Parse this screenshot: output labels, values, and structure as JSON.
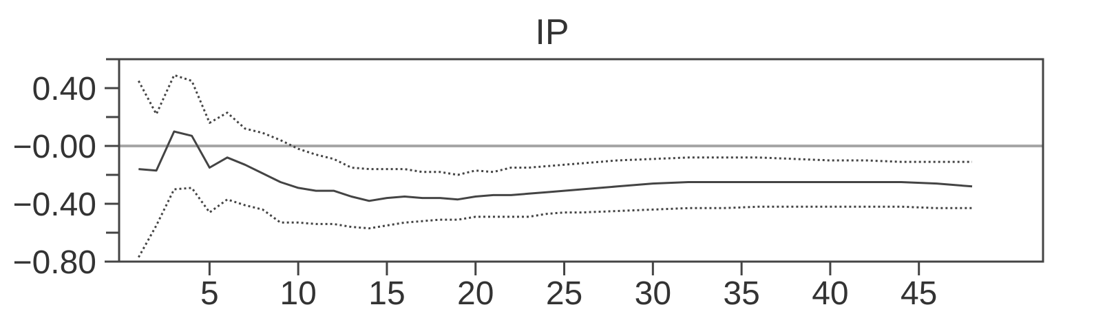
{
  "chart_data": {
    "type": "line",
    "title": "IP",
    "xlabel": "",
    "ylabel": "",
    "xlim": [
      -0.1,
      52
    ],
    "ylim": [
      -0.8,
      0.6
    ],
    "x_ticks": [
      5,
      10,
      15,
      20,
      25,
      30,
      35,
      40,
      45
    ],
    "x_tick_labels": [
      "5",
      "10",
      "15",
      "20",
      "25",
      "30",
      "35",
      "40",
      "45"
    ],
    "y_ticks": [
      0.4,
      0.0,
      -0.4,
      -0.8
    ],
    "y_tick_labels": [
      "0.40",
      "−0.00",
      "−0.40",
      "−0.80"
    ],
    "y_minor_ticks": [
      0.6,
      0.2,
      -0.2,
      -0.6
    ],
    "zero_line": 0.0,
    "grid": false,
    "colors": {
      "estimate": "#444444",
      "band": "#444444",
      "zero": "#a6a6a6",
      "frame": "#444444"
    },
    "series": [
      {
        "role": "upper-band",
        "style": "dotted",
        "x": [
          1,
          2,
          3,
          4,
          5,
          6,
          7,
          8,
          9,
          10,
          11,
          12,
          13,
          14,
          15,
          16,
          17,
          18,
          19,
          20,
          21,
          22,
          23,
          24,
          25,
          26,
          28,
          30,
          32,
          34,
          36,
          38,
          40,
          42,
          44,
          46,
          48
        ],
        "values": [
          0.45,
          0.22,
          0.49,
          0.45,
          0.16,
          0.23,
          0.12,
          0.09,
          0.04,
          -0.02,
          -0.06,
          -0.09,
          -0.15,
          -0.16,
          -0.16,
          -0.16,
          -0.18,
          -0.18,
          -0.2,
          -0.17,
          -0.18,
          -0.15,
          -0.15,
          -0.14,
          -0.13,
          -0.12,
          -0.1,
          -0.09,
          -0.08,
          -0.08,
          -0.08,
          -0.09,
          -0.1,
          -0.1,
          -0.11,
          -0.11,
          -0.11
        ]
      },
      {
        "role": "estimate",
        "style": "solid",
        "x": [
          1,
          2,
          3,
          4,
          5,
          6,
          7,
          8,
          9,
          10,
          11,
          12,
          13,
          14,
          15,
          16,
          17,
          18,
          19,
          20,
          21,
          22,
          23,
          24,
          25,
          26,
          28,
          30,
          32,
          34,
          36,
          38,
          40,
          42,
          44,
          46,
          48
        ],
        "values": [
          -0.16,
          -0.17,
          0.1,
          0.07,
          -0.15,
          -0.08,
          -0.13,
          -0.19,
          -0.25,
          -0.29,
          -0.31,
          -0.31,
          -0.35,
          -0.38,
          -0.36,
          -0.35,
          -0.36,
          -0.36,
          -0.37,
          -0.35,
          -0.34,
          -0.34,
          -0.33,
          -0.32,
          -0.31,
          -0.3,
          -0.28,
          -0.26,
          -0.25,
          -0.25,
          -0.25,
          -0.25,
          -0.25,
          -0.25,
          -0.25,
          -0.26,
          -0.28
        ]
      },
      {
        "role": "lower-band",
        "style": "dotted",
        "x": [
          1,
          2,
          3,
          4,
          5,
          6,
          7,
          8,
          9,
          10,
          11,
          12,
          13,
          14,
          15,
          16,
          17,
          18,
          19,
          20,
          21,
          22,
          23,
          24,
          25,
          26,
          28,
          30,
          32,
          34,
          36,
          38,
          40,
          42,
          44,
          46,
          48
        ],
        "values": [
          -0.77,
          -0.55,
          -0.3,
          -0.29,
          -0.46,
          -0.37,
          -0.41,
          -0.44,
          -0.53,
          -0.53,
          -0.54,
          -0.54,
          -0.56,
          -0.57,
          -0.55,
          -0.53,
          -0.52,
          -0.51,
          -0.51,
          -0.49,
          -0.49,
          -0.49,
          -0.49,
          -0.47,
          -0.46,
          -0.46,
          -0.45,
          -0.44,
          -0.43,
          -0.43,
          -0.42,
          -0.42,
          -0.42,
          -0.42,
          -0.42,
          -0.43,
          -0.43
        ]
      }
    ]
  }
}
